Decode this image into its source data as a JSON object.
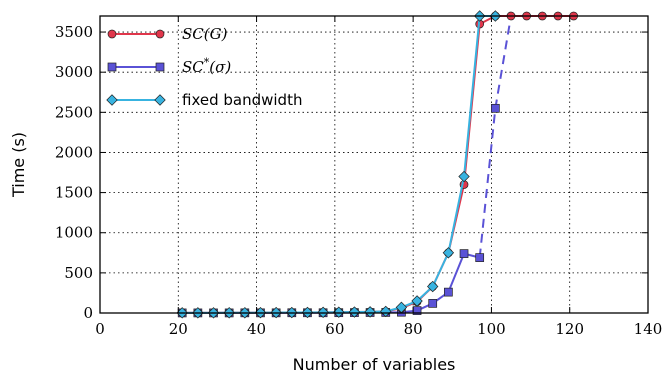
{
  "chart_data": {
    "type": "line",
    "xlabel": "Number of variables",
    "ylabel": "Time (s)",
    "xlim": [
      0,
      140
    ],
    "ylim": [
      0,
      3700
    ],
    "xticks": [
      0,
      20,
      40,
      60,
      80,
      100,
      120,
      140
    ],
    "yticks": [
      0,
      500,
      1000,
      1500,
      2000,
      2500,
      3000,
      3500
    ],
    "grid": true,
    "grid_style": "dotted",
    "legend_position": "top-left",
    "series": [
      {
        "name": "SC(G)",
        "name_parts": {
          "base": "SC(G)",
          "sup": "",
          "tail": ""
        },
        "color": "#e0364b",
        "marker": "circle",
        "dashed_from": null,
        "x": [
          21,
          25,
          29,
          33,
          37,
          41,
          45,
          49,
          53,
          57,
          61,
          65,
          69,
          73,
          77,
          81,
          85,
          89,
          93,
          97,
          101,
          105,
          109,
          113,
          117,
          121
        ],
        "y": [
          2,
          2,
          2,
          3,
          3,
          4,
          5,
          6,
          7,
          8,
          10,
          12,
          14,
          18,
          60,
          140,
          330,
          750,
          1600,
          3600,
          3700,
          3700,
          3700,
          3700,
          3700,
          3700
        ]
      },
      {
        "name": "SC*(σ)",
        "name_parts": {
          "base": "SC",
          "sup": "*",
          "tail": "(σ)"
        },
        "color": "#5a52d6",
        "marker": "square",
        "dashed_from": 101,
        "x": [
          21,
          25,
          29,
          33,
          37,
          41,
          45,
          49,
          53,
          57,
          61,
          65,
          69,
          73,
          77,
          81,
          85,
          89,
          93,
          97,
          101,
          105,
          109,
          113,
          117,
          121
        ],
        "y": [
          1,
          1,
          1,
          1,
          2,
          2,
          2,
          3,
          3,
          3,
          4,
          5,
          6,
          7,
          10,
          30,
          120,
          260,
          740,
          690,
          2550,
          3700,
          3700,
          3700,
          3700,
          3700
        ]
      },
      {
        "name": "fixed bandwidth",
        "name_parts": {
          "base": "fixed bandwidth",
          "sup": "",
          "tail": ""
        },
        "color": "#38b3e0",
        "marker": "diamond",
        "dashed_from": null,
        "x": [
          21,
          25,
          29,
          33,
          37,
          41,
          45,
          49,
          53,
          57,
          61,
          65,
          69,
          73,
          77,
          81,
          85,
          89,
          93,
          97,
          101
        ],
        "y": [
          2,
          2,
          2,
          3,
          3,
          4,
          5,
          6,
          7,
          8,
          10,
          12,
          14,
          20,
          70,
          150,
          330,
          750,
          1700,
          3700,
          3700
        ]
      }
    ]
  }
}
